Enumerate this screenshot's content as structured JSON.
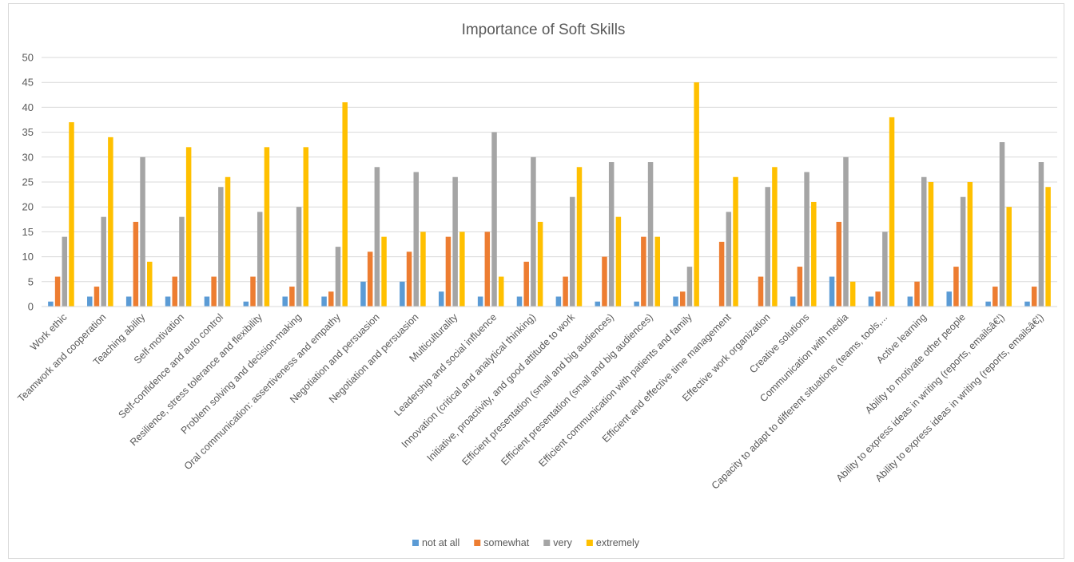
{
  "chart_data": {
    "type": "bar",
    "title": "Importance of Soft Skills",
    "xlabel": "",
    "ylabel": "",
    "ylim": [
      0,
      50
    ],
    "yticks": [
      0,
      5,
      10,
      15,
      20,
      25,
      30,
      35,
      40,
      45,
      50
    ],
    "grid": true,
    "legend_position": "bottom",
    "categories": [
      "Work ethic",
      "Teamwork and cooperation",
      "Teaching ability",
      "Self-motivation",
      "Self-confidence and auto control",
      "Resilience, stress tolerance and flexibility",
      "Problem solving and decision-making",
      "Oral communication: assertiveness and empathy",
      "Negotiation and persuasion",
      "Negotiation and persuasion",
      "Multiculturality",
      "Leadership and social influence",
      "Innovation (critical and analytical thinking)",
      "Initiative, proactivity, and good attitude to work",
      "Efficient presentation (small and big audiences)",
      "Efficient presentation (small and big audiences)",
      "Efficient communication with patients and family",
      "Efficient and effective time management",
      "Effective work organization",
      "Creative solutions",
      "Communication with media",
      "Capacity to adapt to different situations (teams, tools,...",
      "Active learning",
      "Ability to motivate other people",
      "Ability to express ideas in writing (reports, emailsâ€¦)",
      "Ability to express ideas in writing (reports, emailsâ€¦)"
    ],
    "series": [
      {
        "name": "not at all",
        "color": "#5b9bd5",
        "values": [
          1,
          2,
          2,
          2,
          2,
          1,
          2,
          2,
          5,
          5,
          3,
          2,
          2,
          2,
          1,
          1,
          2,
          0,
          0,
          2,
          6,
          2,
          2,
          3,
          1,
          1
        ]
      },
      {
        "name": "somewhat",
        "color": "#ed7d31",
        "values": [
          6,
          4,
          17,
          6,
          6,
          6,
          4,
          3,
          11,
          11,
          14,
          15,
          9,
          6,
          10,
          14,
          3,
          13,
          6,
          8,
          17,
          3,
          5,
          8,
          4,
          4
        ]
      },
      {
        "name": "very",
        "color": "#a5a5a5",
        "values": [
          14,
          18,
          30,
          18,
          24,
          19,
          20,
          12,
          28,
          27,
          26,
          35,
          30,
          22,
          29,
          29,
          8,
          19,
          24,
          27,
          30,
          15,
          26,
          22,
          33,
          29
        ]
      },
      {
        "name": "extremely",
        "color": "#ffc000",
        "values": [
          37,
          34,
          9,
          32,
          26,
          32,
          32,
          41,
          14,
          15,
          15,
          6,
          17,
          28,
          18,
          14,
          45,
          26,
          28,
          21,
          5,
          38,
          25,
          25,
          20,
          24
        ]
      }
    ]
  }
}
